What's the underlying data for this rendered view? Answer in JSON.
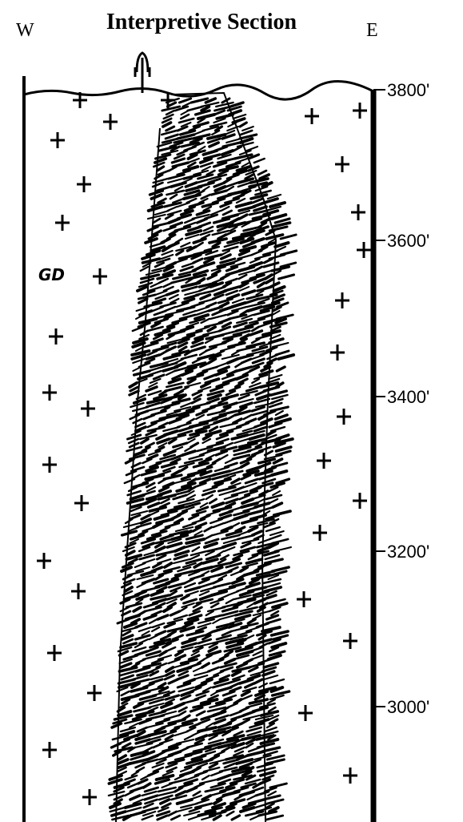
{
  "header": {
    "title": "Interpretive Section",
    "west": "W",
    "east": "E"
  },
  "scale": {
    "labels": [
      "3800'",
      "3600'",
      "3400'",
      "3200'",
      "3000'"
    ]
  },
  "units": {
    "host_rock": "GD"
  }
}
